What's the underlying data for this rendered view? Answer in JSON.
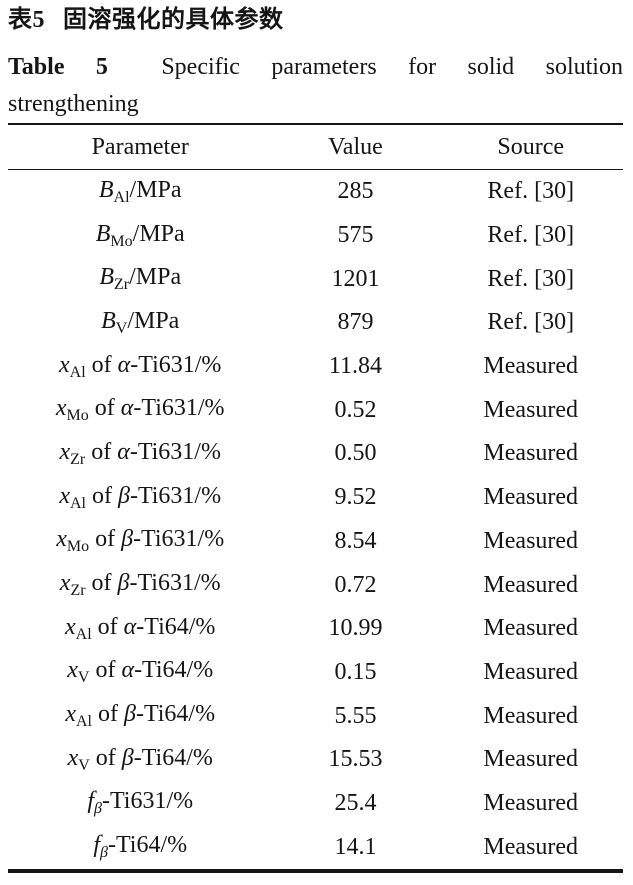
{
  "title_cn": {
    "label": "表5",
    "text": "固溶强化的具体参数"
  },
  "title_en": {
    "words": [
      "Table",
      "5",
      "Specific",
      "parameters",
      "for",
      "solid",
      "solution"
    ],
    "line2": "strengthening"
  },
  "table": {
    "headers": [
      "Parameter",
      "Value",
      "Source"
    ],
    "rows": [
      {
        "param": [
          {
            "t": "B",
            "cls": "i"
          },
          {
            "t": "Al",
            "cls": "sub"
          },
          {
            "t": "/MPa",
            "cls": ""
          }
        ],
        "value": "285",
        "source": "Ref. [30]"
      },
      {
        "param": [
          {
            "t": "B",
            "cls": "i"
          },
          {
            "t": "Mo",
            "cls": "sub"
          },
          {
            "t": "/MPa",
            "cls": ""
          }
        ],
        "value": "575",
        "source": "Ref. [30]"
      },
      {
        "param": [
          {
            "t": "B",
            "cls": "i"
          },
          {
            "t": "Zr",
            "cls": "sub"
          },
          {
            "t": "/MPa",
            "cls": ""
          }
        ],
        "value": "1201",
        "source": "Ref. [30]"
      },
      {
        "param": [
          {
            "t": "B",
            "cls": "i"
          },
          {
            "t": "V",
            "cls": "sub"
          },
          {
            "t": "/MPa",
            "cls": ""
          }
        ],
        "value": "879",
        "source": "Ref. [30]"
      },
      {
        "param": [
          {
            "t": "x",
            "cls": "i"
          },
          {
            "t": "Al",
            "cls": "sub"
          },
          {
            "t": " of ",
            "cls": ""
          },
          {
            "t": "α",
            "cls": "i"
          },
          {
            "t": "-Ti631/%",
            "cls": ""
          }
        ],
        "value": "11.84",
        "source": "Measured"
      },
      {
        "param": [
          {
            "t": "x",
            "cls": "i"
          },
          {
            "t": "Mo",
            "cls": "sub"
          },
          {
            "t": " of ",
            "cls": ""
          },
          {
            "t": "α",
            "cls": "i"
          },
          {
            "t": "-Ti631/%",
            "cls": ""
          }
        ],
        "value": "0.52",
        "source": "Measured"
      },
      {
        "param": [
          {
            "t": "x",
            "cls": "i"
          },
          {
            "t": "Zr",
            "cls": "sub"
          },
          {
            "t": " of ",
            "cls": ""
          },
          {
            "t": "α",
            "cls": "i"
          },
          {
            "t": "-Ti631/%",
            "cls": ""
          }
        ],
        "value": "0.50",
        "source": "Measured"
      },
      {
        "param": [
          {
            "t": "x",
            "cls": "i"
          },
          {
            "t": "Al",
            "cls": "sub"
          },
          {
            "t": " of ",
            "cls": ""
          },
          {
            "t": "β",
            "cls": "i"
          },
          {
            "t": "-Ti631/%",
            "cls": ""
          }
        ],
        "value": "9.52",
        "source": "Measured"
      },
      {
        "param": [
          {
            "t": "x",
            "cls": "i"
          },
          {
            "t": "Mo",
            "cls": "sub"
          },
          {
            "t": " of ",
            "cls": ""
          },
          {
            "t": "β",
            "cls": "i"
          },
          {
            "t": "-Ti631/%",
            "cls": ""
          }
        ],
        "value": "8.54",
        "source": "Measured"
      },
      {
        "param": [
          {
            "t": "x",
            "cls": "i"
          },
          {
            "t": "Zr",
            "cls": "sub"
          },
          {
            "t": " of ",
            "cls": ""
          },
          {
            "t": "β",
            "cls": "i"
          },
          {
            "t": "-Ti631/%",
            "cls": ""
          }
        ],
        "value": "0.72",
        "source": "Measured"
      },
      {
        "param": [
          {
            "t": "x",
            "cls": "i"
          },
          {
            "t": "Al",
            "cls": "sub"
          },
          {
            "t": " of ",
            "cls": ""
          },
          {
            "t": "α",
            "cls": "i"
          },
          {
            "t": "-Ti64/%",
            "cls": ""
          }
        ],
        "value": "10.99",
        "source": "Measured"
      },
      {
        "param": [
          {
            "t": "x",
            "cls": "i"
          },
          {
            "t": "V",
            "cls": "sub"
          },
          {
            "t": " of ",
            "cls": ""
          },
          {
            "t": "α",
            "cls": "i"
          },
          {
            "t": "-Ti64/%",
            "cls": ""
          }
        ],
        "value": "0.15",
        "source": "Measured"
      },
      {
        "param": [
          {
            "t": "x",
            "cls": "i"
          },
          {
            "t": "Al",
            "cls": "sub"
          },
          {
            "t": " of ",
            "cls": ""
          },
          {
            "t": "β",
            "cls": "i"
          },
          {
            "t": "-Ti64/%",
            "cls": ""
          }
        ],
        "value": "5.55",
        "source": "Measured"
      },
      {
        "param": [
          {
            "t": "x",
            "cls": "i"
          },
          {
            "t": "V",
            "cls": "sub"
          },
          {
            "t": " of ",
            "cls": ""
          },
          {
            "t": "β",
            "cls": "i"
          },
          {
            "t": "-Ti64/%",
            "cls": ""
          }
        ],
        "value": "15.53",
        "source": "Measured"
      },
      {
        "param": [
          {
            "t": "f",
            "cls": "i"
          },
          {
            "t": "β",
            "cls": "subi"
          },
          {
            "t": "-Ti631/%",
            "cls": ""
          }
        ],
        "value": "25.4",
        "source": "Measured"
      },
      {
        "param": [
          {
            "t": "f",
            "cls": "i"
          },
          {
            "t": "β",
            "cls": "subi"
          },
          {
            "t": "-Ti64/%",
            "cls": ""
          }
        ],
        "value": "14.1",
        "source": "Measured"
      }
    ]
  },
  "colors": {
    "text": "#151515",
    "rule": "#161616",
    "background": "#ffffff"
  }
}
